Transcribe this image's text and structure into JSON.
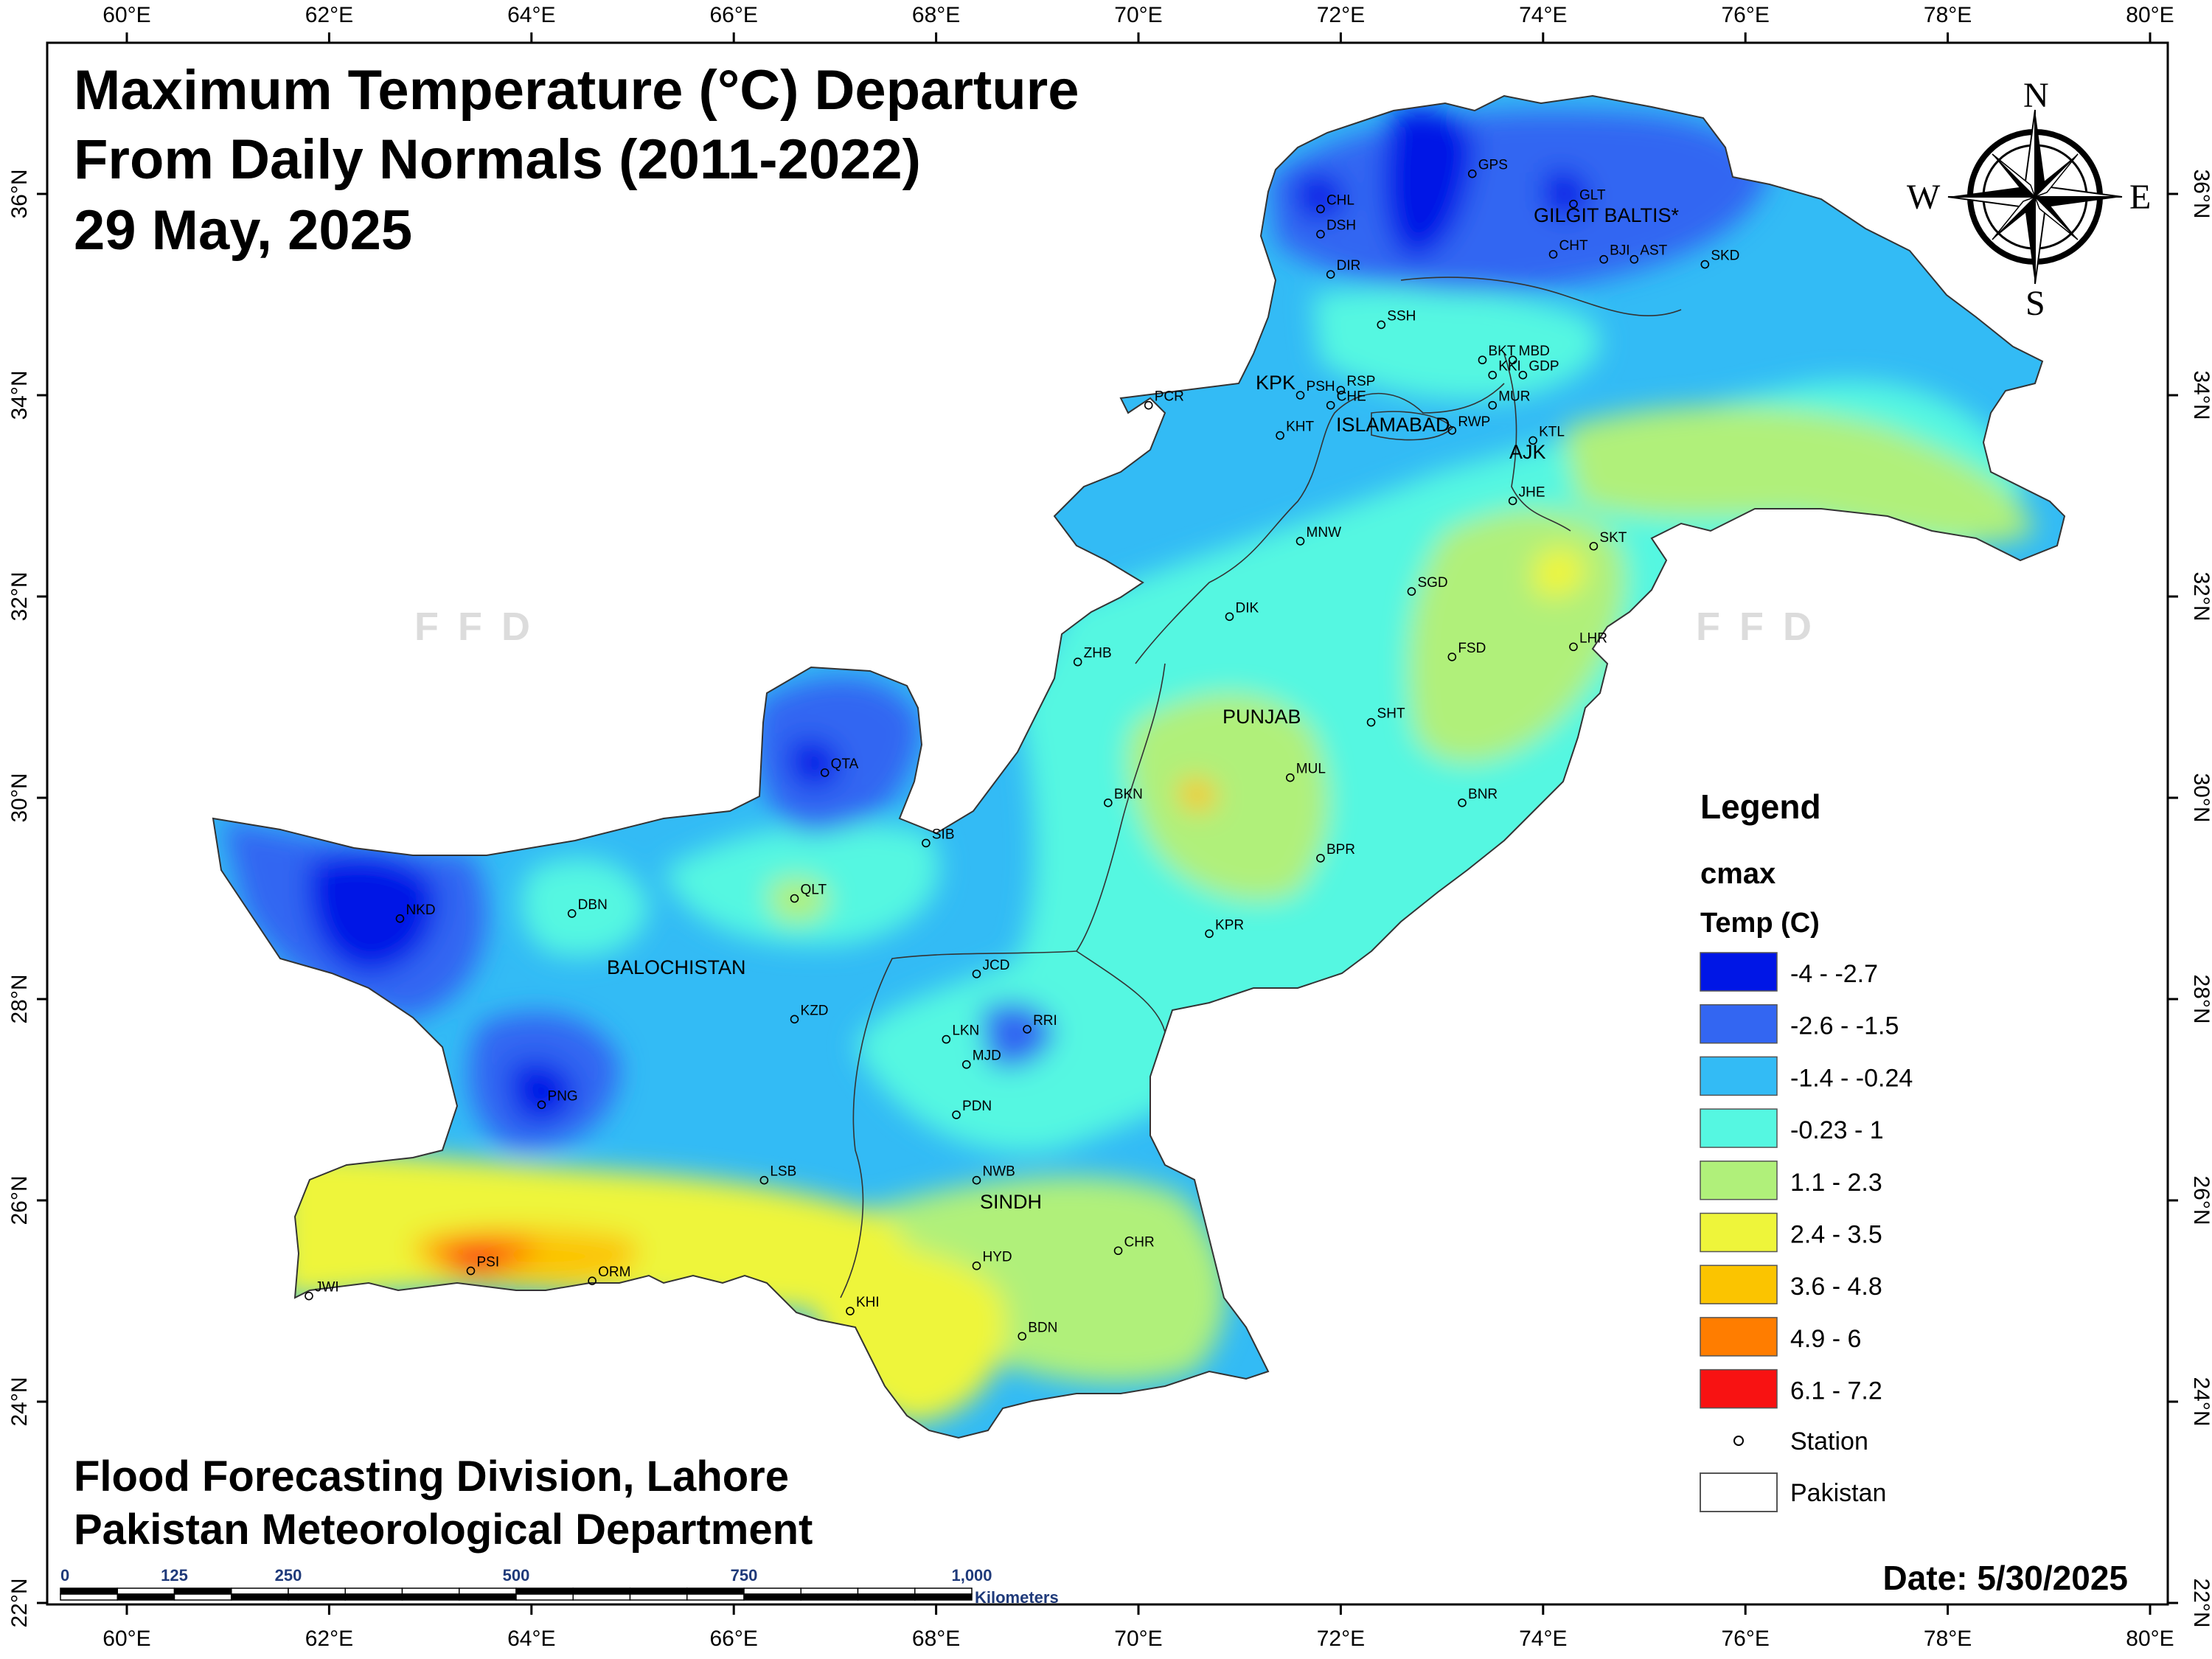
{
  "title": {
    "line1": "Maximum Temperature (°C) Departure",
    "line2": "From Daily Normals (2011-2022)",
    "line3": "29 May, 2025"
  },
  "credits": {
    "line1": "Flood Forecasting Division, Lahore",
    "line2": "Pakistan Meteorological Department"
  },
  "date_label": "Date: 5/30/2025",
  "watermark": "FFD",
  "compass": {
    "n": "N",
    "s": "S",
    "e": "E",
    "w": "W"
  },
  "axes": {
    "lon_labels": [
      "60°E",
      "62°E",
      "64°E",
      "66°E",
      "68°E",
      "70°E",
      "72°E",
      "74°E",
      "76°E",
      "78°E",
      "80°E"
    ],
    "lat_labels": [
      "36°N",
      "34°N",
      "32°N",
      "30°N",
      "28°N",
      "26°N",
      "24°N",
      "22°N"
    ]
  },
  "legend": {
    "title": "Legend",
    "layer": "cmax",
    "field": "Temp (C)",
    "classes": [
      {
        "label": "-4 - -2.7",
        "color": "#0016e6"
      },
      {
        "label": "-2.6 - -1.5",
        "color": "#3366f2"
      },
      {
        "label": "-1.4 - -0.24",
        "color": "#33bbf5"
      },
      {
        "label": "-0.23 - 1",
        "color": "#55f7e1"
      },
      {
        "label": "1.1 - 2.3",
        "color": "#b0f07a"
      },
      {
        "label": "2.4 - 3.5",
        "color": "#eef53a"
      },
      {
        "label": "3.6 - 4.8",
        "color": "#fbc400"
      },
      {
        "label": "4.9 - 6",
        "color": "#ff7d00"
      },
      {
        "label": "6.1 - 7.2",
        "color": "#f81212"
      }
    ],
    "station_label": "Station",
    "boundary_label": "Pakistan"
  },
  "scale_bar": {
    "labels": [
      "0",
      "125",
      "250",
      "500",
      "750",
      "1,000"
    ],
    "unit": "Kilometers"
  },
  "regions": {
    "gb": "GILGIT BALTIS*",
    "kpk": "KPK",
    "islamabad": "ISLAMABAD",
    "ajk": "AJK",
    "punjab": "PUNJAB",
    "balochistan": "BALOCHISTAN",
    "sindh": "SINDH"
  },
  "stations": [
    {
      "code": "GPS",
      "lon": 73.3,
      "lat": 36.2
    },
    {
      "code": "CHL",
      "lon": 71.8,
      "lat": 35.85
    },
    {
      "code": "GLT",
      "lon": 74.3,
      "lat": 35.9
    },
    {
      "code": "DSH",
      "lon": 71.8,
      "lat": 35.6
    },
    {
      "code": "CHT",
      "lon": 74.1,
      "lat": 35.4
    },
    {
      "code": "BJI",
      "lon": 74.6,
      "lat": 35.35
    },
    {
      "code": "AST",
      "lon": 74.9,
      "lat": 35.35
    },
    {
      "code": "SKD",
      "lon": 75.6,
      "lat": 35.3
    },
    {
      "code": "DIR",
      "lon": 71.9,
      "lat": 35.2
    },
    {
      "code": "SSH",
      "lon": 72.4,
      "lat": 34.7
    },
    {
      "code": "BKT",
      "lon": 73.4,
      "lat": 34.35
    },
    {
      "code": "MBD",
      "lon": 73.7,
      "lat": 34.35
    },
    {
      "code": "KKI",
      "lon": 73.5,
      "lat": 34.2
    },
    {
      "code": "GDP",
      "lon": 73.8,
      "lat": 34.2
    },
    {
      "code": "PSH",
      "lon": 71.6,
      "lat": 34.0
    },
    {
      "code": "RSP",
      "lon": 72.0,
      "lat": 34.05
    },
    {
      "code": "CHE",
      "lon": 71.9,
      "lat": 33.9
    },
    {
      "code": "MUR",
      "lon": 73.5,
      "lat": 33.9
    },
    {
      "code": "PCR",
      "lon": 70.1,
      "lat": 33.9
    },
    {
      "code": "KHT",
      "lon": 71.4,
      "lat": 33.6
    },
    {
      "code": "RWP",
      "lon": 73.1,
      "lat": 33.65
    },
    {
      "code": "KTL",
      "lon": 73.9,
      "lat": 33.55
    },
    {
      "code": "JHE",
      "lon": 73.7,
      "lat": 32.95
    },
    {
      "code": "MNW",
      "lon": 71.6,
      "lat": 32.55
    },
    {
      "code": "SKT",
      "lon": 74.5,
      "lat": 32.5
    },
    {
      "code": "SGD",
      "lon": 72.7,
      "lat": 32.05
    },
    {
      "code": "DIK",
      "lon": 70.9,
      "lat": 31.8
    },
    {
      "code": "LHR",
      "lon": 74.3,
      "lat": 31.5
    },
    {
      "code": "FSD",
      "lon": 73.1,
      "lat": 31.4
    },
    {
      "code": "ZHB",
      "lon": 69.4,
      "lat": 31.35
    },
    {
      "code": "SHT",
      "lon": 72.3,
      "lat": 30.75
    },
    {
      "code": "QTA",
      "lon": 66.9,
      "lat": 30.25
    },
    {
      "code": "MUL",
      "lon": 71.5,
      "lat": 30.2
    },
    {
      "code": "BNR",
      "lon": 73.2,
      "lat": 29.95
    },
    {
      "code": "BKN",
      "lon": 69.7,
      "lat": 29.95
    },
    {
      "code": "SIB",
      "lon": 67.9,
      "lat": 29.55
    },
    {
      "code": "BPR",
      "lon": 71.8,
      "lat": 29.4
    },
    {
      "code": "QLT",
      "lon": 66.6,
      "lat": 29.0
    },
    {
      "code": "NKD",
      "lon": 62.7,
      "lat": 28.8
    },
    {
      "code": "DBN",
      "lon": 64.4,
      "lat": 28.85
    },
    {
      "code": "KPR",
      "lon": 70.7,
      "lat": 28.65
    },
    {
      "code": "JCD",
      "lon": 68.4,
      "lat": 28.25
    },
    {
      "code": "KZD",
      "lon": 66.6,
      "lat": 27.8
    },
    {
      "code": "RRI",
      "lon": 68.9,
      "lat": 27.7
    },
    {
      "code": "LKN",
      "lon": 68.1,
      "lat": 27.6
    },
    {
      "code": "MJD",
      "lon": 68.3,
      "lat": 27.35
    },
    {
      "code": "PNG",
      "lon": 64.1,
      "lat": 26.95
    },
    {
      "code": "PDN",
      "lon": 68.2,
      "lat": 26.85
    },
    {
      "code": "NWB",
      "lon": 68.4,
      "lat": 26.2
    },
    {
      "code": "LSB",
      "lon": 66.3,
      "lat": 26.2
    },
    {
      "code": "CHR",
      "lon": 69.8,
      "lat": 25.5
    },
    {
      "code": "PSI",
      "lon": 63.4,
      "lat": 25.3
    },
    {
      "code": "HYD",
      "lon": 68.4,
      "lat": 25.35
    },
    {
      "code": "ORM",
      "lon": 64.6,
      "lat": 25.2
    },
    {
      "code": "JWI",
      "lon": 61.8,
      "lat": 25.05
    },
    {
      "code": "KHI",
      "lon": 67.15,
      "lat": 24.9
    },
    {
      "code": "BDN",
      "lon": 68.85,
      "lat": 24.65
    }
  ]
}
